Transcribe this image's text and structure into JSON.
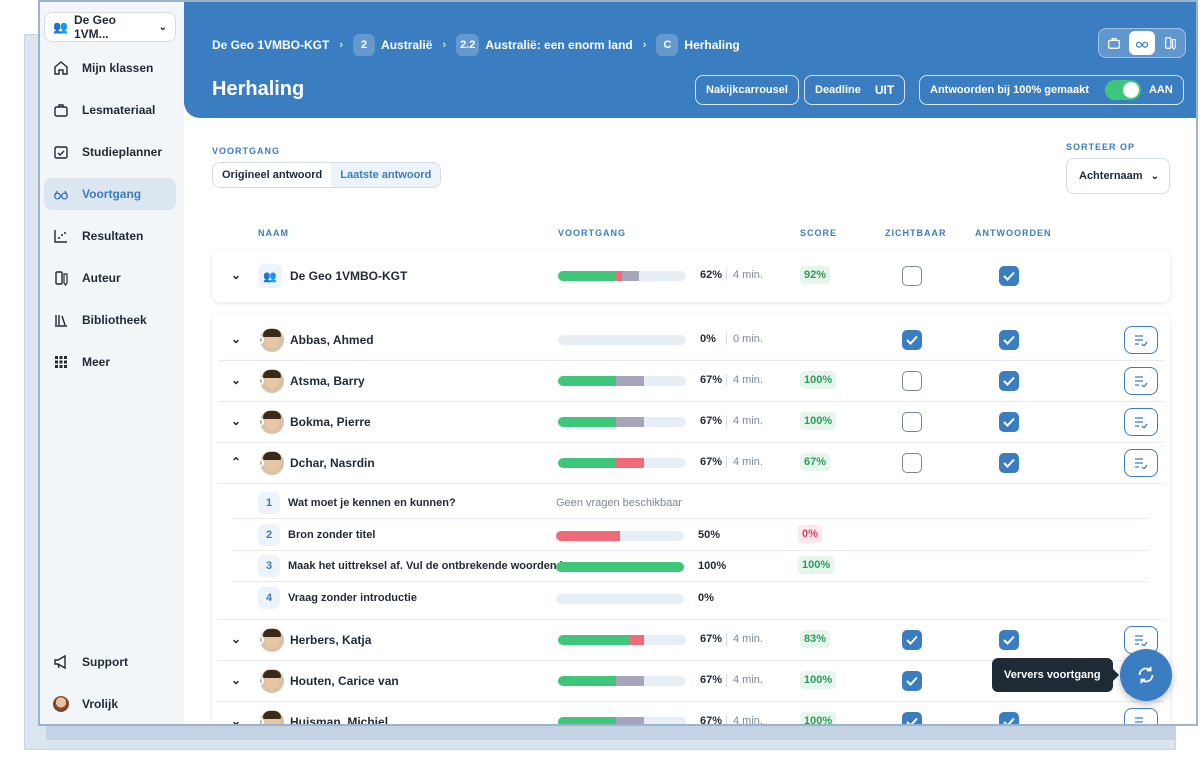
{
  "sidebar": {
    "class_select": "De Geo 1VM...",
    "items": [
      {
        "label": "Mijn klassen",
        "icon": "home-icon"
      },
      {
        "label": "Lesmateriaal",
        "icon": "briefcase-icon"
      },
      {
        "label": "Studieplanner",
        "icon": "calendar-check-icon"
      },
      {
        "label": "Voortgang",
        "icon": "glasses-icon",
        "active": true
      },
      {
        "label": "Resultaten",
        "icon": "chart-icon"
      },
      {
        "label": "Auteur",
        "icon": "author-icon"
      },
      {
        "label": "Bibliotheek",
        "icon": "library-icon"
      },
      {
        "label": "Meer",
        "icon": "grid-icon"
      }
    ],
    "bottom": [
      {
        "label": "Support",
        "icon": "megaphone-icon"
      },
      {
        "label": "Vrolijk",
        "icon": "avatar"
      }
    ]
  },
  "header": {
    "breadcrumb": [
      {
        "badge": "",
        "label": "De Geo 1VMBO-KGT"
      },
      {
        "badge": "2",
        "label": "Australië"
      },
      {
        "badge": "2.2",
        "label": "Australië: een enorm land"
      },
      {
        "badge": "C",
        "label": "Herhaling"
      }
    ],
    "title": "Herhaling",
    "nakijk_label": "Nakijkcarrousel",
    "deadline_label": "Deadline",
    "deadline_value": "UIT",
    "answers_label": "Antwoorden bij 100% gemaakt",
    "answers_value": "AAN"
  },
  "filters": {
    "progress_label": "VOORTGANG",
    "original": "Origineel antwoord",
    "latest": "Laatste antwoord",
    "sort_label": "SORTEER OP",
    "sort_value": "Achternaam"
  },
  "columns": {
    "name": "NAAM",
    "progress": "VOORTGANG",
    "score": "SCORE",
    "visible": "ZICHTBAAR",
    "answers": "ANTWOORDEN"
  },
  "group": {
    "name": "De Geo 1VMBO-KGT",
    "progress_pct": "62%",
    "time": "4 min.",
    "score": "92%",
    "green": 0.45,
    "red": 0.05,
    "purple": 0.13,
    "visible": false,
    "answers": true
  },
  "students": [
    {
      "name": "Abbas, Ahmed",
      "pct": "0%",
      "time": "0 min.",
      "score": "",
      "green": 0,
      "red": 0,
      "purple": 0,
      "visible": true,
      "answers": true,
      "expanded": false
    },
    {
      "name": "Atsma, Barry",
      "pct": "67%",
      "time": "4 min.",
      "score": "100%",
      "green": 0.45,
      "red": 0,
      "purple": 0.22,
      "visible": false,
      "answers": true,
      "expanded": false
    },
    {
      "name": "Bokma, Pierre",
      "pct": "67%",
      "time": "4 min.",
      "score": "100%",
      "green": 0.45,
      "red": 0,
      "purple": 0.22,
      "visible": false,
      "answers": true,
      "expanded": false
    },
    {
      "name": "Dchar, Nasrdin",
      "pct": "67%",
      "time": "4 min.",
      "score": "67%",
      "green": 0.45,
      "red": 0.22,
      "purple": 0,
      "visible": false,
      "answers": true,
      "expanded": true
    },
    {
      "name": "Herbers, Katja",
      "pct": "67%",
      "time": "4 min.",
      "score": "83%",
      "green": 0.56,
      "red": 0.11,
      "purple": 0,
      "visible": true,
      "answers": true,
      "expanded": false
    },
    {
      "name": "Houten, Carice van",
      "pct": "67%",
      "time": "4 min.",
      "score": "100%",
      "green": 0.45,
      "red": 0,
      "purple": 0.22,
      "visible": true,
      "answers": true,
      "expanded": false
    },
    {
      "name": "Huisman, Michiel",
      "pct": "67%",
      "time": "4 min.",
      "score": "100%",
      "green": 0.45,
      "red": 0,
      "purple": 0.22,
      "visible": true,
      "answers": true,
      "expanded": false
    }
  ],
  "sub_rows": [
    {
      "num": "1",
      "title": "Wat moet je kennen en kunnen?",
      "note": "Geen vragen beschikbaar",
      "pct": "",
      "score": ""
    },
    {
      "num": "2",
      "title": "Bron zonder titel",
      "note": "",
      "pct": "50%",
      "score": "0%",
      "red": 0.5,
      "green": 0
    },
    {
      "num": "3",
      "title": "Maak het uittreksel af. Vul de ontbrekende woorden in.",
      "note": "",
      "pct": "100%",
      "score": "100%",
      "red": 0,
      "green": 1.0
    },
    {
      "num": "4",
      "title": "Vraag zonder introductie",
      "note": "",
      "pct": "0%",
      "score": "",
      "red": 0,
      "green": 0
    }
  ],
  "refresh_tooltip": "Ververs voortgang"
}
